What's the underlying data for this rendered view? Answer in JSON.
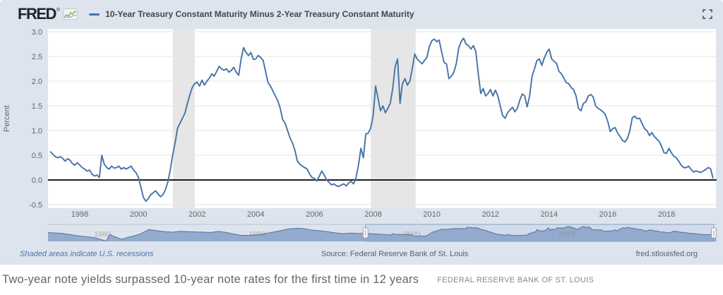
{
  "header": {
    "logo_text": "FRED",
    "logo_reg": "®",
    "legend_label": "10-Year Treasury Constant Maturity Minus 2-Year Treasury Constant Maturity"
  },
  "footer": {
    "recession_note": "Shaded areas indicate U.S. recessions",
    "source": "Source: Federal Reserve Bank of St. Louis",
    "site_link": "fred.stlouisfed.org"
  },
  "caption": {
    "headline": "Two-year note yields surpassed 10-year note rates for the first time in 12 years",
    "attribution": "FEDERAL RESERVE BANK OF ST. LOUIS"
  },
  "colors": {
    "page_band": "#dde4ee",
    "plot_bg": "#ffffff",
    "series_line": "#4572a7",
    "recession_band": "#e6e6e6",
    "gridline": "#e6e6e6",
    "zero_line": "#000000",
    "axis_text": "#666666",
    "mini_fill": "#8ba4ca",
    "mini_line": "#54729f",
    "mini_selection_bg": "#cdd7ea",
    "mini_selection_border": "#8aa0c0",
    "mini_decade_text": "#8d8678"
  },
  "chart_data": {
    "type": "line",
    "title": "10-Year Treasury Constant Maturity Minus 2-Year Treasury Constant Maturity",
    "xlabel": "",
    "ylabel": "Percent",
    "ylim": [
      -0.5,
      3.0
    ],
    "yticks": [
      3.0,
      2.5,
      2.0,
      1.5,
      1.0,
      0.5,
      0.0,
      -0.5
    ],
    "ytick_labels": [
      "3.0",
      "2.5",
      "2.0",
      "1.5",
      "1.0",
      "0.5",
      "0.0",
      "-0.5"
    ],
    "xticks": [
      1998,
      2000,
      2002,
      2004,
      2006,
      2008,
      2010,
      2012,
      2014,
      2016,
      2018
    ],
    "grid": true,
    "legend_position": "top",
    "recession_bands": [
      [
        2001.17,
        2001.92
      ],
      [
        2007.92,
        2009.45
      ]
    ],
    "series": [
      {
        "name": "10-Year Treasury Constant Maturity Minus 2-Year Treasury Constant Maturity",
        "units": "Percent",
        "x_start": 1997.0,
        "frequency": "monthly",
        "values": [
          0.57,
          0.52,
          0.47,
          0.45,
          0.47,
          0.44,
          0.38,
          0.43,
          0.4,
          0.33,
          0.3,
          0.35,
          0.3,
          0.25,
          0.22,
          0.18,
          0.2,
          0.12,
          0.08,
          0.1,
          0.05,
          0.5,
          0.32,
          0.25,
          0.22,
          0.28,
          0.24,
          0.25,
          0.28,
          0.22,
          0.25,
          0.22,
          0.25,
          0.28,
          0.2,
          0.15,
          0.05,
          -0.15,
          -0.35,
          -0.43,
          -0.38,
          -0.3,
          -0.26,
          -0.22,
          -0.28,
          -0.34,
          -0.3,
          -0.2,
          -0.05,
          0.2,
          0.5,
          0.75,
          1.05,
          1.15,
          1.25,
          1.35,
          1.55,
          1.72,
          1.87,
          1.95,
          1.98,
          1.9,
          2.02,
          1.92,
          2.0,
          2.06,
          2.15,
          2.1,
          2.2,
          2.3,
          2.25,
          2.22,
          2.25,
          2.18,
          2.22,
          2.28,
          2.18,
          2.12,
          2.45,
          2.68,
          2.58,
          2.52,
          2.58,
          2.44,
          2.45,
          2.52,
          2.48,
          2.42,
          2.2,
          1.97,
          1.9,
          1.8,
          1.7,
          1.6,
          1.45,
          1.22,
          1.15,
          1.0,
          0.85,
          0.75,
          0.6,
          0.38,
          0.32,
          0.28,
          0.25,
          0.22,
          0.12,
          0.05,
          0.03,
          -0.02,
          0.08,
          0.18,
          0.1,
          0.0,
          -0.05,
          -0.1,
          -0.08,
          -0.12,
          -0.13,
          -0.1,
          -0.08,
          -0.12,
          -0.06,
          -0.03,
          -0.08,
          0.05,
          0.3,
          0.64,
          0.45,
          0.93,
          0.95,
          1.05,
          1.3,
          1.9,
          1.65,
          1.4,
          1.5,
          1.36,
          1.45,
          1.55,
          1.85,
          2.3,
          2.45,
          1.55,
          1.95,
          2.05,
          1.92,
          2.0,
          2.25,
          2.55,
          2.45,
          2.4,
          2.35,
          2.42,
          2.48,
          2.7,
          2.82,
          2.85,
          2.8,
          2.83,
          2.6,
          2.38,
          2.35,
          2.05,
          2.1,
          2.18,
          2.35,
          2.67,
          2.8,
          2.87,
          2.75,
          2.72,
          2.65,
          2.72,
          2.6,
          2.15,
          1.75,
          1.85,
          1.7,
          1.75,
          1.83,
          1.7,
          1.82,
          1.7,
          1.5,
          1.3,
          1.25,
          1.36,
          1.42,
          1.47,
          1.38,
          1.45,
          1.62,
          1.74,
          1.7,
          1.48,
          1.7,
          2.1,
          2.25,
          2.42,
          2.45,
          2.32,
          2.47,
          2.58,
          2.65,
          2.45,
          2.4,
          2.36,
          2.2,
          2.15,
          2.06,
          1.97,
          1.95,
          1.87,
          1.83,
          1.7,
          1.45,
          1.4,
          1.55,
          1.58,
          1.7,
          1.73,
          1.68,
          1.5,
          1.45,
          1.42,
          1.38,
          1.32,
          1.18,
          0.98,
          1.04,
          1.06,
          0.95,
          0.88,
          0.8,
          0.77,
          0.84,
          1.0,
          1.26,
          1.29,
          1.24,
          1.25,
          1.14,
          1.04,
          1.0,
          0.9,
          0.96,
          0.88,
          0.83,
          0.78,
          0.68,
          0.55,
          0.54,
          0.64,
          0.55,
          0.48,
          0.45,
          0.38,
          0.3,
          0.25,
          0.25,
          0.28,
          0.22,
          0.16,
          0.18,
          0.17,
          0.15,
          0.18,
          0.21,
          0.25,
          0.23,
          0.04
        ]
      }
    ],
    "overview": {
      "x_range": [
        1976.5,
        2019.67
      ],
      "selection": [
        1997.0,
        2019.67
      ],
      "decade_labels": [
        "1980",
        "1990",
        "2000",
        "2010"
      ],
      "decade_label_x": [
        1980,
        1990,
        2000,
        2010
      ],
      "pre_x": [
        1976.5,
        1977,
        1977.5,
        1978,
        1978.5,
        1979,
        1979.5,
        1980,
        1980.25,
        1980.5,
        1980.75,
        1981,
        1981.25,
        1981.5,
        1981.75,
        1982,
        1982.5,
        1983,
        1983.5,
        1984,
        1984.5,
        1985,
        1985.5,
        1986,
        1986.5,
        1987,
        1987.5,
        1988,
        1988.5,
        1989,
        1989.5,
        1990,
        1990.5,
        1991,
        1991.5,
        1992,
        1992.5,
        1993,
        1993.5,
        1994,
        1994.5,
        1995,
        1995.5,
        1996,
        1996.5
      ],
      "pre_y": [
        0.85,
        0.75,
        0.55,
        0.15,
        -0.25,
        -0.55,
        -0.85,
        -1.6,
        -2.0,
        0.3,
        -0.4,
        -0.9,
        -1.4,
        -1.0,
        -0.6,
        -0.35,
        0.5,
        1.9,
        1.55,
        1.2,
        1.0,
        1.3,
        1.2,
        1.1,
        1.0,
        0.9,
        1.25,
        0.9,
        0.4,
        -0.1,
        0.0,
        0.1,
        0.5,
        1.0,
        1.5,
        2.1,
        2.3,
        2.2,
        1.7,
        1.5,
        1.2,
        0.8,
        0.5,
        0.7,
        0.6
      ]
    }
  }
}
